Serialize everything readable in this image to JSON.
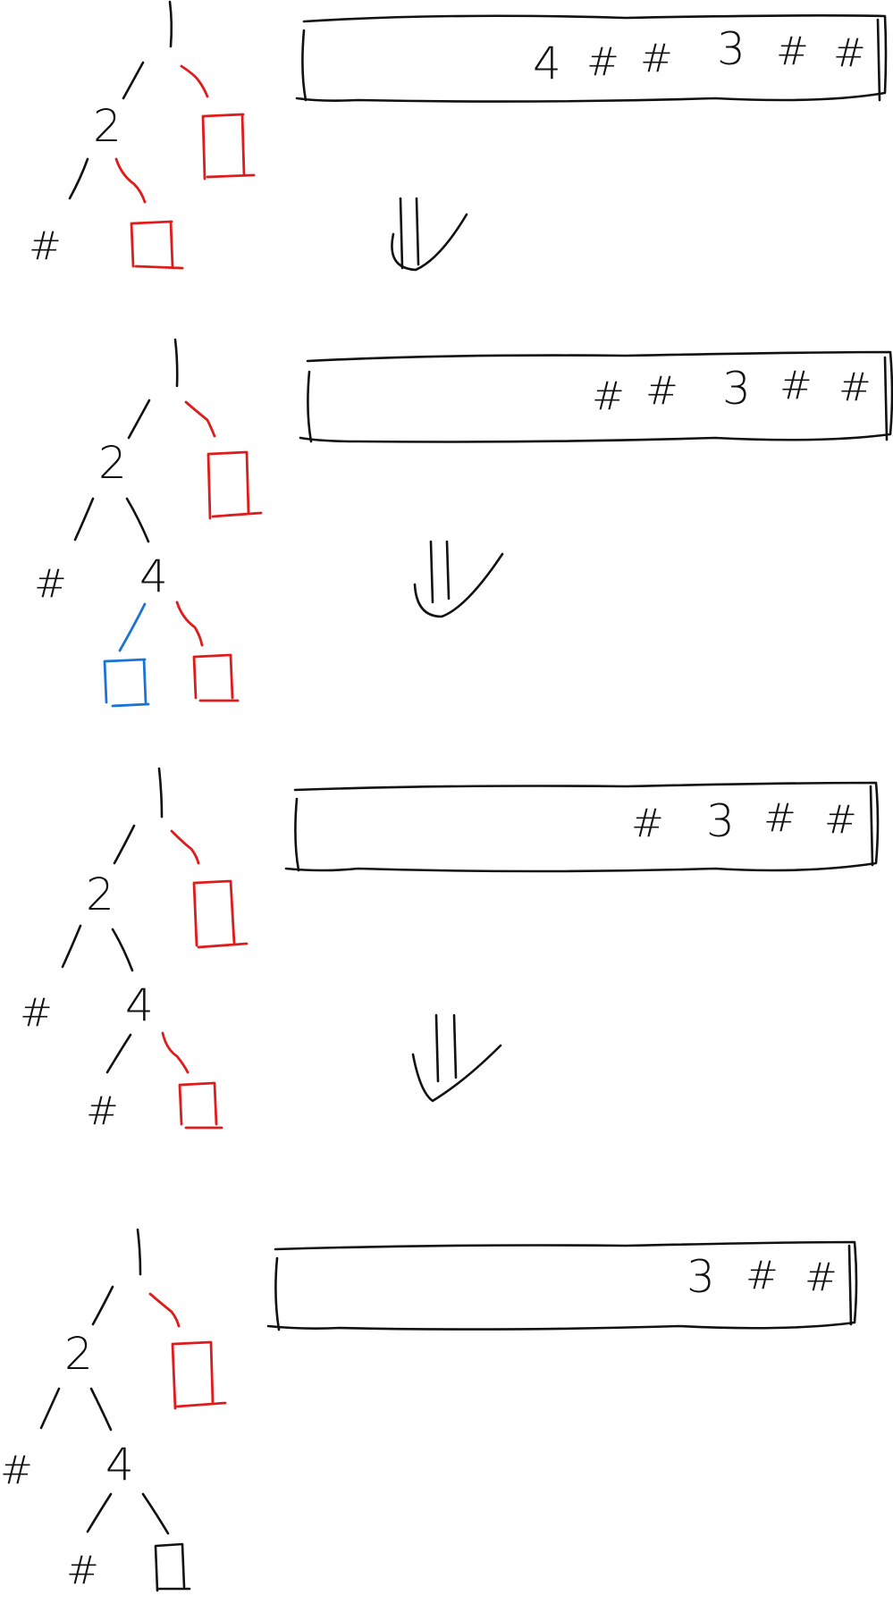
{
  "steps": [
    {
      "tree": {
        "root_child": "2",
        "left_leaf": "#"
      },
      "queue": [
        "4",
        "#",
        "#",
        "3",
        "#",
        "#"
      ]
    },
    {
      "tree": {
        "root_child": "2",
        "left_leaf": "#",
        "new_node": "4"
      },
      "queue": [
        "#",
        "#",
        "3",
        "#",
        "#"
      ]
    },
    {
      "tree": {
        "root_child": "2",
        "left_leaf": "#",
        "new_node": "4",
        "new_left_leaf": "#"
      },
      "queue": [
        "#",
        "3",
        "#",
        "#"
      ]
    },
    {
      "tree": {
        "root_child": "2",
        "left_leaf": "#",
        "new_node": "4",
        "new_left_leaf": "#"
      },
      "queue": [
        "3",
        "#",
        "#"
      ]
    }
  ],
  "colors": {
    "ink": "#111111",
    "pending": "#e01b1b",
    "current": "#1a74d8"
  }
}
